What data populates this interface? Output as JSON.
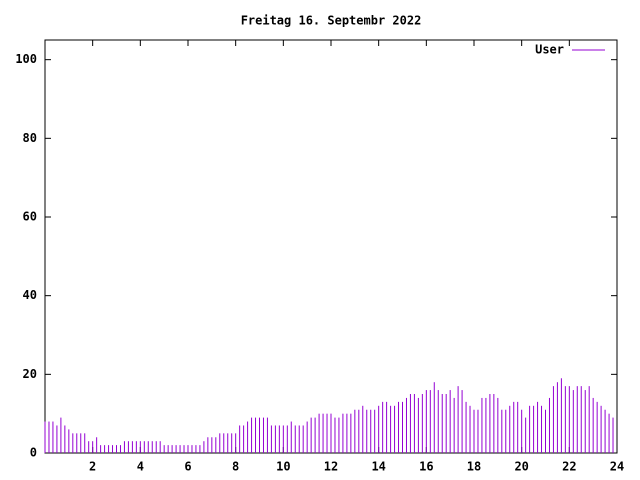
{
  "chart_data": {
    "type": "impulse",
    "title": "Freitag 16. Septembr 2022",
    "x": [
      0,
      0.167,
      0.333,
      0.5,
      0.667,
      0.833,
      1,
      1.167,
      1.333,
      1.5,
      1.667,
      1.833,
      2,
      2.167,
      2.333,
      2.5,
      2.667,
      2.833,
      3,
      3.167,
      3.333,
      3.5,
      3.667,
      3.833,
      4,
      4.167,
      4.333,
      4.5,
      4.667,
      4.833,
      5,
      5.167,
      5.333,
      5.5,
      5.667,
      5.833,
      6,
      6.167,
      6.333,
      6.5,
      6.667,
      6.833,
      7,
      7.167,
      7.333,
      7.5,
      7.667,
      7.833,
      8,
      8.167,
      8.333,
      8.5,
      8.667,
      8.833,
      9,
      9.167,
      9.333,
      9.5,
      9.667,
      9.833,
      10,
      10.167,
      10.333,
      10.5,
      10.667,
      10.833,
      11,
      11.167,
      11.333,
      11.5,
      11.667,
      11.833,
      12,
      12.167,
      12.333,
      12.5,
      12.667,
      12.833,
      13,
      13.167,
      13.333,
      13.5,
      13.667,
      13.833,
      14,
      14.167,
      14.333,
      14.5,
      14.667,
      14.833,
      15,
      15.167,
      15.333,
      15.5,
      15.667,
      15.833,
      16,
      16.167,
      16.333,
      16.5,
      16.667,
      16.833,
      17,
      17.167,
      17.333,
      17.5,
      17.667,
      17.833,
      18,
      18.167,
      18.333,
      18.5,
      18.667,
      18.833,
      19,
      19.167,
      19.333,
      19.5,
      19.667,
      19.833,
      20,
      20.167,
      20.333,
      20.5,
      20.667,
      20.833,
      21,
      21.167,
      21.333,
      21.5,
      21.667,
      21.833,
      22,
      22.167,
      22.333,
      22.5,
      22.667,
      22.833,
      23,
      23.167,
      23.333,
      23.5,
      23.667,
      23.833
    ],
    "series": [
      {
        "name": "User",
        "color": "#9400d3",
        "values": [
          8,
          8,
          8,
          7,
          9,
          7,
          6,
          5,
          5,
          5,
          5,
          3,
          3,
          4,
          2,
          2,
          2,
          2,
          2,
          2,
          3,
          3,
          3,
          3,
          3,
          3,
          3,
          3,
          3,
          3,
          2,
          2,
          2,
          2,
          2,
          2,
          2,
          2,
          2,
          2,
          3,
          4,
          4,
          4,
          5,
          5,
          5,
          5,
          5,
          7,
          7,
          8,
          9,
          9,
          9,
          9,
          9,
          7,
          7,
          7,
          7,
          7,
          8,
          7,
          7,
          7,
          8,
          9,
          9,
          10,
          10,
          10,
          10,
          9,
          9,
          10,
          10,
          10,
          11,
          11,
          12,
          11,
          11,
          11,
          12,
          13,
          13,
          12,
          12,
          13,
          13,
          14,
          15,
          15,
          14,
          15,
          16,
          16,
          18,
          16,
          15,
          15,
          16,
          14,
          17,
          16,
          13,
          12,
          11,
          11,
          14,
          14,
          15,
          15,
          14,
          11,
          11,
          12,
          13,
          13,
          11,
          9,
          12,
          12,
          13,
          12,
          11,
          14,
          17,
          18,
          19,
          17,
          17,
          16,
          17,
          17,
          16,
          17,
          14,
          13,
          12,
          11,
          10,
          9
        ]
      }
    ],
    "xlim": [
      0,
      24
    ],
    "xticks": [
      2,
      4,
      6,
      8,
      10,
      12,
      14,
      16,
      18,
      20,
      22,
      24
    ],
    "ylim": [
      0,
      105
    ],
    "yticks": [
      0,
      20,
      40,
      60,
      80,
      100
    ],
    "legend": "upper right"
  }
}
